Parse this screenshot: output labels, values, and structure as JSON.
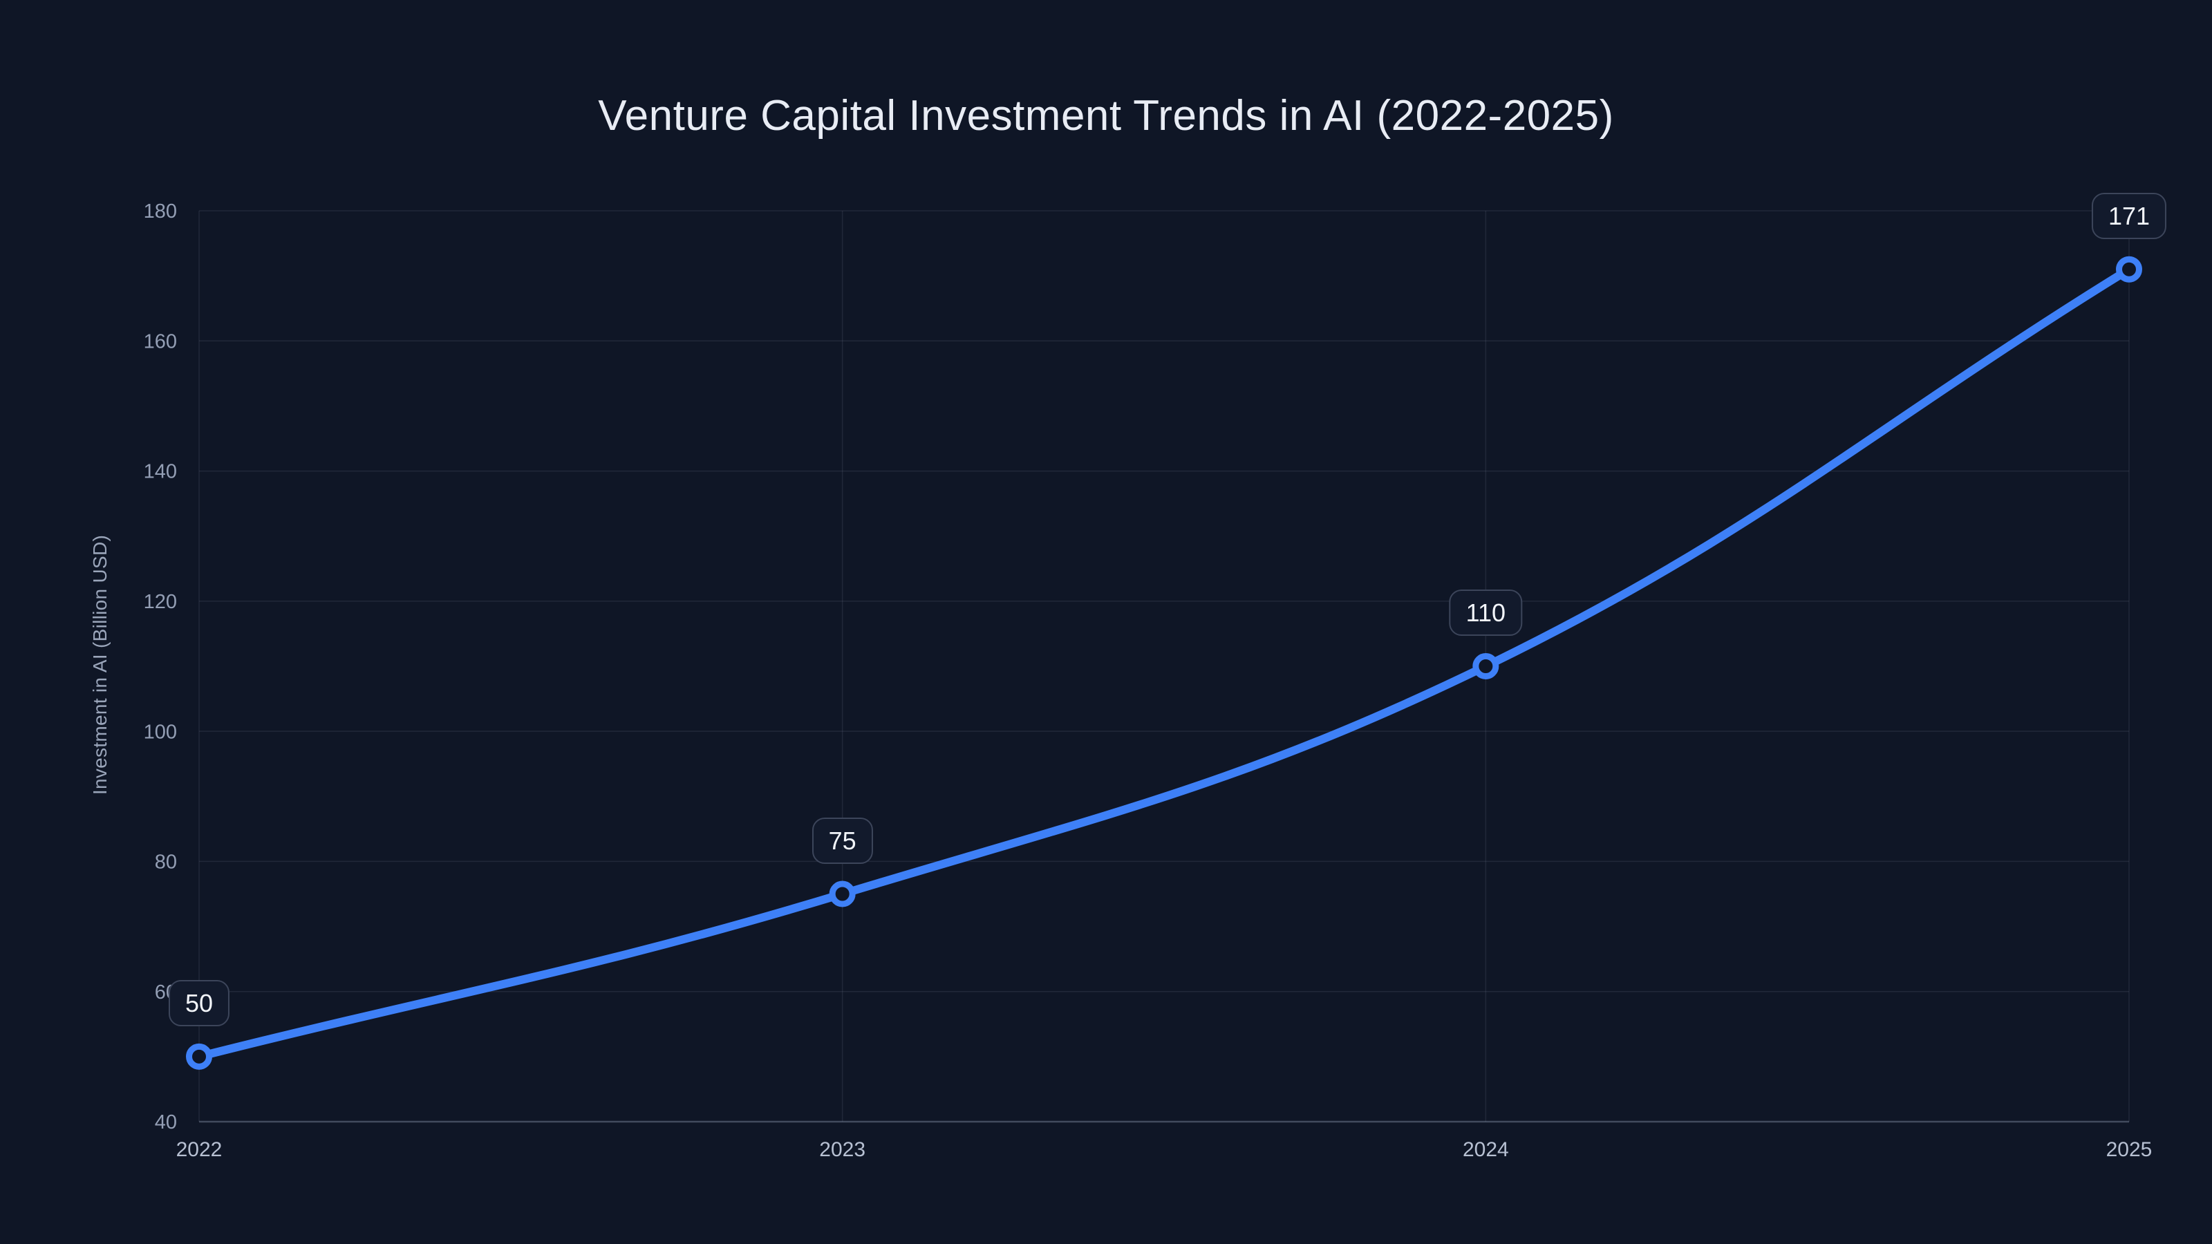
{
  "chart_data": {
    "type": "line",
    "title": "Venture Capital Investment Trends in AI (2022-2025)",
    "categories": [
      "2022",
      "2023",
      "2024",
      "2025"
    ],
    "series": [
      {
        "name": "Investment in AI",
        "values": [
          50,
          75,
          110,
          171
        ]
      }
    ],
    "data_labels": [
      "50",
      "75",
      "110",
      "171"
    ],
    "xlabel": "",
    "ylabel": "Investment in AI (Billion USD)",
    "ylim": [
      40,
      180
    ],
    "yticks": [
      40,
      60,
      80,
      100,
      120,
      140,
      160,
      180
    ],
    "grid": "on",
    "legend": "none",
    "line_smoothing": 0.4,
    "marker_style": "ring",
    "colors": {
      "background": "#0f1626",
      "line": "#3e80f7",
      "marker_fill": "#0f1626",
      "grid": "rgba(151,163,186,0.13)",
      "axis_line": "rgba(151,163,186,0.38)",
      "title_text": "#e8ecf4",
      "ytick_text": "#949fb5",
      "xtick_text": "#b7c0d2",
      "ylabel_text": "#9aa5ba",
      "label_box_bg": "#121a2c",
      "label_box_border": "#3c455a",
      "label_box_text": "#f2f5fa"
    }
  }
}
